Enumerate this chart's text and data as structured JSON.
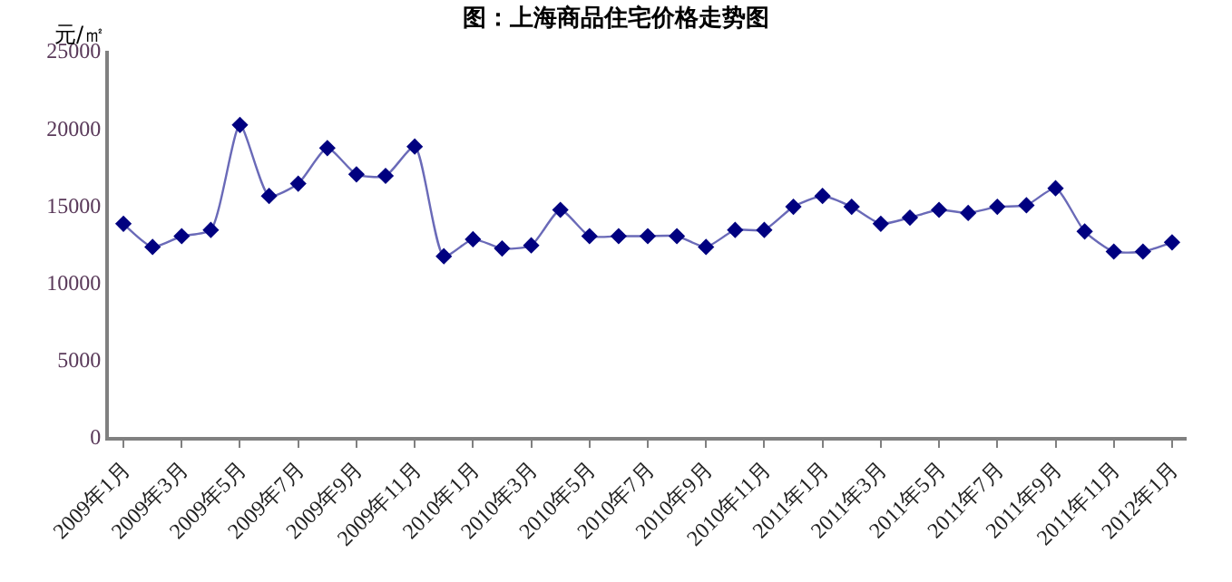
{
  "chart_data": {
    "type": "line",
    "title": "图：上海商品住宅价格走势图",
    "ylabel": "元/㎡",
    "categories": [
      "2009年1月",
      null,
      "2009年3月",
      null,
      "2009年5月",
      null,
      "2009年7月",
      null,
      "2009年9月",
      null,
      "2009年11月",
      null,
      "2010年1月",
      null,
      "2010年3月",
      null,
      "2010年5月",
      null,
      "2010年7月",
      null,
      "2010年9月",
      null,
      "2010年11月",
      null,
      "2011年1月",
      null,
      "2011年3月",
      null,
      "2011年5月",
      null,
      "2011年7月",
      null,
      "2011年9月",
      null,
      "2011年11月",
      null,
      "2012年1月"
    ],
    "series": [
      {
        "color": "#000080",
        "values": [
          13800,
          12300,
          13000,
          13400,
          20200,
          15600,
          16400,
          18700,
          17000,
          16900,
          18800,
          11700,
          12800,
          12200,
          12400,
          14700,
          13000,
          13000,
          13000,
          13000,
          12300,
          13400,
          13400,
          14900,
          15600,
          14900,
          13800,
          14200,
          14700,
          14500,
          14900,
          15000,
          16100,
          13300,
          12000,
          12000,
          12600
        ]
      }
    ],
    "ylim": [
      0,
      25000
    ],
    "yticks": [
      0,
      5000,
      10000,
      15000,
      20000,
      25000
    ],
    "legend": false,
    "marker": "diamond",
    "line_style": "solid"
  }
}
